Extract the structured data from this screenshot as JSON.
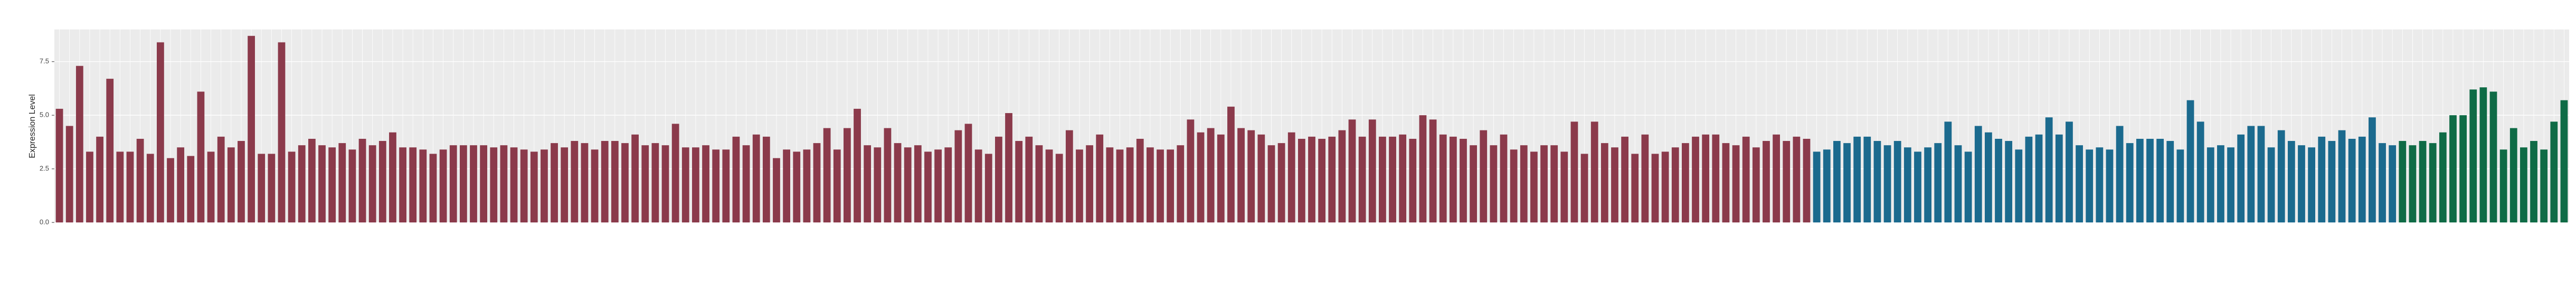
{
  "chart_data": {
    "type": "bar",
    "y_label": "Expression Level",
    "categories": [
      null,
      null,
      null,
      null,
      null,
      null,
      null,
      null,
      null,
      null,
      null,
      null,
      null,
      null,
      null,
      null,
      null,
      null,
      null,
      null,
      null,
      null,
      null,
      null,
      null,
      null,
      null,
      null,
      null,
      null,
      null,
      null,
      null,
      null,
      null,
      null,
      null,
      null,
      null,
      null,
      null,
      null,
      null,
      null,
      null,
      null,
      null,
      null,
      null,
      null,
      null,
      null,
      null,
      null,
      null,
      null,
      null,
      null,
      null,
      null,
      null,
      null,
      null,
      null,
      null,
      null,
      null,
      null,
      null,
      null,
      null,
      null,
      null,
      null,
      null,
      null,
      null,
      null,
      null,
      null,
      null,
      null,
      null,
      null,
      null,
      null,
      null,
      null,
      null,
      null,
      null,
      null,
      null,
      null,
      null,
      null,
      null,
      null,
      null,
      null,
      null,
      null,
      null,
      null,
      null,
      null,
      null,
      null,
      null,
      null,
      null,
      null,
      null,
      null,
      null,
      null,
      null,
      null,
      null,
      null,
      null,
      null,
      null,
      null,
      null,
      null,
      null,
      null,
      null,
      null,
      null,
      null,
      null,
      null,
      null,
      null,
      null,
      null,
      null,
      null,
      null,
      null,
      null,
      null,
      null,
      null,
      null,
      null,
      null,
      null,
      null,
      null,
      null,
      null,
      null,
      null,
      null,
      null,
      null,
      null,
      null,
      null,
      null,
      null,
      null,
      null,
      null,
      null,
      null,
      null,
      null,
      null,
      null,
      null,
      null,
      null,
      null,
      null,
      null,
      null,
      null,
      null,
      null,
      null,
      null,
      null,
      null,
      null,
      null,
      null,
      null,
      null,
      null,
      null,
      null,
      null,
      null,
      null,
      null,
      null,
      null,
      null,
      null,
      null,
      null,
      null,
      null,
      null,
      null,
      null,
      null,
      null,
      null,
      null,
      null,
      null,
      null,
      null,
      null,
      null,
      null,
      null,
      null,
      null,
      null,
      null,
      null,
      null,
      null,
      null,
      null,
      null,
      null,
      null,
      null,
      null,
      null,
      null,
      null,
      null,
      null,
      null,
      null,
      null,
      null,
      null,
      null,
      null,
      null
    ],
    "values": [
      5.3,
      4.5,
      7.3,
      3.3,
      4.0,
      6.7,
      3.3,
      3.3,
      3.9,
      3.2,
      8.4,
      3.0,
      3.5,
      3.1,
      6.1,
      3.3,
      4.0,
      3.5,
      3.8,
      8.7,
      3.2,
      3.2,
      8.4,
      3.3,
      3.6,
      3.9,
      3.6,
      3.5,
      3.7,
      3.4,
      3.9,
      3.6,
      3.8,
      4.2,
      3.5,
      3.5,
      3.4,
      3.2,
      3.4,
      3.6,
      3.6,
      3.6,
      3.6,
      3.5,
      3.6,
      3.5,
      3.4,
      3.3,
      3.4,
      3.7,
      3.5,
      3.8,
      3.7,
      3.4,
      3.8,
      3.8,
      3.7,
      4.1,
      3.6,
      3.7,
      3.6,
      4.6,
      3.5,
      3.5,
      3.6,
      3.4,
      3.4,
      4.0,
      3.6,
      4.1,
      4.0,
      3.0,
      3.4,
      3.3,
      3.4,
      3.7,
      4.4,
      3.4,
      4.4,
      5.3,
      3.6,
      3.5,
      4.4,
      3.7,
      3.5,
      3.6,
      3.3,
      3.4,
      3.5,
      4.3,
      4.6,
      3.4,
      3.2,
      4.0,
      5.1,
      3.8,
      4.0,
      3.6,
      3.4,
      3.2,
      4.3,
      3.4,
      3.6,
      4.1,
      3.5,
      3.4,
      3.5,
      3.9,
      3.5,
      3.4,
      3.4,
      3.6,
      4.8,
      4.2,
      4.4,
      4.1,
      5.4,
      4.4,
      4.3,
      4.1,
      3.6,
      3.7,
      4.2,
      3.9,
      4.0,
      3.9,
      4.0,
      4.3,
      4.8,
      4.0,
      4.8,
      4.0,
      4.0,
      4.1,
      3.9,
      5.0,
      4.8,
      4.1,
      4.0,
      3.9,
      3.6,
      4.3,
      3.6,
      4.1,
      3.4,
      3.6,
      3.3,
      3.6,
      3.6,
      3.3,
      4.7,
      3.2,
      4.7,
      3.7,
      3.5,
      4.0,
      3.2,
      4.1,
      3.2,
      3.3,
      3.5,
      3.7,
      4.0,
      4.1,
      4.1,
      3.7,
      3.6,
      4.0,
      3.5,
      3.8,
      4.1,
      3.8,
      4.0,
      3.9,
      3.3,
      3.4,
      3.8,
      3.7,
      4.0,
      4.0,
      3.8,
      3.6,
      3.8,
      3.5,
      3.3,
      3.5,
      3.7,
      4.7,
      3.6,
      3.3,
      4.5,
      4.2,
      3.9,
      3.8,
      3.4,
      4.0,
      4.1,
      4.9,
      4.1,
      4.7,
      3.6,
      3.4,
      3.5,
      3.4,
      4.5,
      3.7,
      3.9,
      3.9,
      3.9,
      3.8,
      3.4,
      5.7,
      4.7,
      3.5,
      3.6,
      3.5,
      4.1,
      4.5,
      4.5,
      3.5,
      4.3,
      3.8,
      3.6,
      3.5,
      4.0,
      3.8,
      4.3,
      3.9,
      4.0,
      4.9,
      3.7,
      3.6,
      3.8,
      3.6,
      3.8,
      3.7,
      4.2,
      5.0,
      5.0,
      6.2,
      6.3,
      6.1,
      3.4,
      4.4,
      3.5,
      3.8,
      3.4,
      4.7,
      5.7
    ],
    "bar_colors": [
      "#8b3a4b",
      "#8b3a4b",
      "#8b3a4b",
      "#8b3a4b",
      "#8b3a4b",
      "#8b3a4b",
      "#8b3a4b",
      "#8b3a4b",
      "#8b3a4b",
      "#8b3a4b",
      "#8b3a4b",
      "#8b3a4b",
      "#8b3a4b",
      "#8b3a4b",
      "#8b3a4b",
      "#8b3a4b",
      "#8b3a4b",
      "#8b3a4b",
      "#8b3a4b",
      "#8b3a4b",
      "#8b3a4b",
      "#8b3a4b",
      "#8b3a4b",
      "#8b3a4b",
      "#8b3a4b",
      "#8b3a4b",
      "#8b3a4b",
      "#8b3a4b",
      "#8b3a4b",
      "#8b3a4b",
      "#8b3a4b",
      "#8b3a4b",
      "#8b3a4b",
      "#8b3a4b",
      "#8b3a4b",
      "#8b3a4b",
      "#8b3a4b",
      "#8b3a4b",
      "#8b3a4b",
      "#8b3a4b",
      "#8b3a4b",
      "#8b3a4b",
      "#8b3a4b",
      "#8b3a4b",
      "#8b3a4b",
      "#8b3a4b",
      "#8b3a4b",
      "#8b3a4b",
      "#8b3a4b",
      "#8b3a4b",
      "#8b3a4b",
      "#8b3a4b",
      "#8b3a4b",
      "#8b3a4b",
      "#8b3a4b",
      "#8b3a4b",
      "#8b3a4b",
      "#8b3a4b",
      "#8b3a4b",
      "#8b3a4b",
      "#8b3a4b",
      "#8b3a4b",
      "#8b3a4b",
      "#8b3a4b",
      "#8b3a4b",
      "#8b3a4b",
      "#8b3a4b",
      "#8b3a4b",
      "#8b3a4b",
      "#8b3a4b",
      "#8b3a4b",
      "#8b3a4b",
      "#8b3a4b",
      "#8b3a4b",
      "#8b3a4b",
      "#8b3a4b",
      "#8b3a4b",
      "#8b3a4b",
      "#8b3a4b",
      "#8b3a4b",
      "#8b3a4b",
      "#8b3a4b",
      "#8b3a4b",
      "#8b3a4b",
      "#8b3a4b",
      "#8b3a4b",
      "#8b3a4b",
      "#8b3a4b",
      "#8b3a4b",
      "#8b3a4b",
      "#8b3a4b",
      "#8b3a4b",
      "#8b3a4b",
      "#8b3a4b",
      "#8b3a4b",
      "#8b3a4b",
      "#8b3a4b",
      "#8b3a4b",
      "#8b3a4b",
      "#8b3a4b",
      "#8b3a4b",
      "#8b3a4b",
      "#8b3a4b",
      "#8b3a4b",
      "#8b3a4b",
      "#8b3a4b",
      "#8b3a4b",
      "#8b3a4b",
      "#8b3a4b",
      "#8b3a4b",
      "#8b3a4b",
      "#8b3a4b",
      "#8b3a4b",
      "#8b3a4b",
      "#8b3a4b",
      "#8b3a4b",
      "#8b3a4b",
      "#8b3a4b",
      "#8b3a4b",
      "#8b3a4b",
      "#8b3a4b",
      "#8b3a4b",
      "#8b3a4b",
      "#8b3a4b",
      "#8b3a4b",
      "#8b3a4b",
      "#8b3a4b",
      "#8b3a4b",
      "#8b3a4b",
      "#8b3a4b",
      "#8b3a4b",
      "#8b3a4b",
      "#8b3a4b",
      "#8b3a4b",
      "#8b3a4b",
      "#8b3a4b",
      "#8b3a4b",
      "#8b3a4b",
      "#8b3a4b",
      "#8b3a4b",
      "#8b3a4b",
      "#8b3a4b",
      "#8b3a4b",
      "#8b3a4b",
      "#8b3a4b",
      "#8b3a4b",
      "#8b3a4b",
      "#8b3a4b",
      "#8b3a4b",
      "#8b3a4b",
      "#8b3a4b",
      "#8b3a4b",
      "#8b3a4b",
      "#8b3a4b",
      "#8b3a4b",
      "#8b3a4b",
      "#8b3a4b",
      "#8b3a4b",
      "#8b3a4b",
      "#8b3a4b",
      "#8b3a4b",
      "#8b3a4b",
      "#8b3a4b",
      "#8b3a4b",
      "#8b3a4b",
      "#8b3a4b",
      "#8b3a4b",
      "#8b3a4b",
      "#8b3a4b",
      "#8b3a4b",
      "#8b3a4b",
      "#8b3a4b",
      "#8b3a4b",
      "#8b3a4b",
      "#1b6a8e",
      "#1b6a8e",
      "#1b6a8e",
      "#1b6a8e",
      "#1b6a8e",
      "#1b6a8e",
      "#1b6a8e",
      "#1b6a8e",
      "#1b6a8e",
      "#1b6a8e",
      "#1b6a8e",
      "#1b6a8e",
      "#1b6a8e",
      "#1b6a8e",
      "#1b6a8e",
      "#1b6a8e",
      "#1b6a8e",
      "#1b6a8e",
      "#1b6a8e",
      "#1b6a8e",
      "#1b6a8e",
      "#1b6a8e",
      "#1b6a8e",
      "#1b6a8e",
      "#1b6a8e",
      "#1b6a8e",
      "#1b6a8e",
      "#1b6a8e",
      "#1b6a8e",
      "#1b6a8e",
      "#1b6a8e",
      "#1b6a8e",
      "#1b6a8e",
      "#1b6a8e",
      "#1b6a8e",
      "#1b6a8e",
      "#1b6a8e",
      "#1b6a8e",
      "#1b6a8e",
      "#1b6a8e",
      "#1b6a8e",
      "#1b6a8e",
      "#1b6a8e",
      "#1b6a8e",
      "#1b6a8e",
      "#1b6a8e",
      "#1b6a8e",
      "#1b6a8e",
      "#1b6a8e",
      "#1b6a8e",
      "#1b6a8e",
      "#1b6a8e",
      "#1b6a8e",
      "#1b6a8e",
      "#1b6a8e",
      "#1b6a8e",
      "#1b6a8e",
      "#1b6a8e",
      "#0f6b46",
      "#0f6b46",
      "#0f6b46",
      "#0f6b46",
      "#0f6b46",
      "#0f6b46",
      "#0f6b46",
      "#0f6b46",
      "#0f6b46",
      "#0f6b46",
      "#0f6b46",
      "#0f6b46",
      "#0f6b46",
      "#0f6b46",
      "#0f6b46",
      "#0f6b46",
      "#0f6b46"
    ],
    "ylim": [
      0,
      9.0
    ],
    "yticks": [
      {
        "value": 0,
        "label": "0.0"
      },
      {
        "value": 2.5,
        "label": "2.5"
      },
      {
        "value": 5,
        "label": "5.0"
      },
      {
        "value": 7.5,
        "label": "7.5"
      }
    ],
    "grid": true
  }
}
